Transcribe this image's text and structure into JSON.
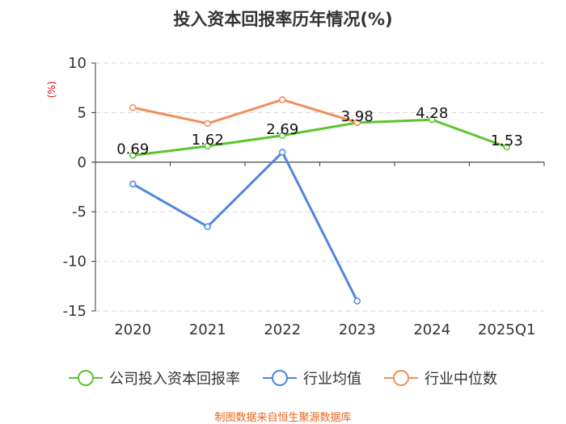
{
  "chart_data": {
    "type": "line",
    "title": "投入资本回报率历年情况(%)",
    "ylabel": "(%)",
    "categories": [
      "2020",
      "2021",
      "2022",
      "2023",
      "2024",
      "2025Q1"
    ],
    "ylim": [
      -15,
      10
    ],
    "yticks": [
      "10",
      "5",
      "0",
      "-5",
      "-10",
      "-15"
    ],
    "grid": true,
    "legend_position": "bottom",
    "series": [
      {
        "name": "公司投入资本回报率",
        "color": "#5bc42b",
        "values": [
          0.69,
          1.62,
          2.69,
          3.98,
          4.28,
          1.53
        ],
        "labels": [
          "0.69",
          "1.62",
          "2.69",
          "3.98",
          "4.28",
          "1.53"
        ]
      },
      {
        "name": "行业均值",
        "color": "#4f86e0",
        "values": [
          -2.2,
          -6.5,
          1.0,
          -14.0,
          null,
          null
        ]
      },
      {
        "name": "行业中位数",
        "color": "#f28e5b",
        "values": [
          5.5,
          3.9,
          6.3,
          4.0,
          null,
          null
        ]
      }
    ]
  },
  "source": "制图数据来自恒生聚源数据库"
}
